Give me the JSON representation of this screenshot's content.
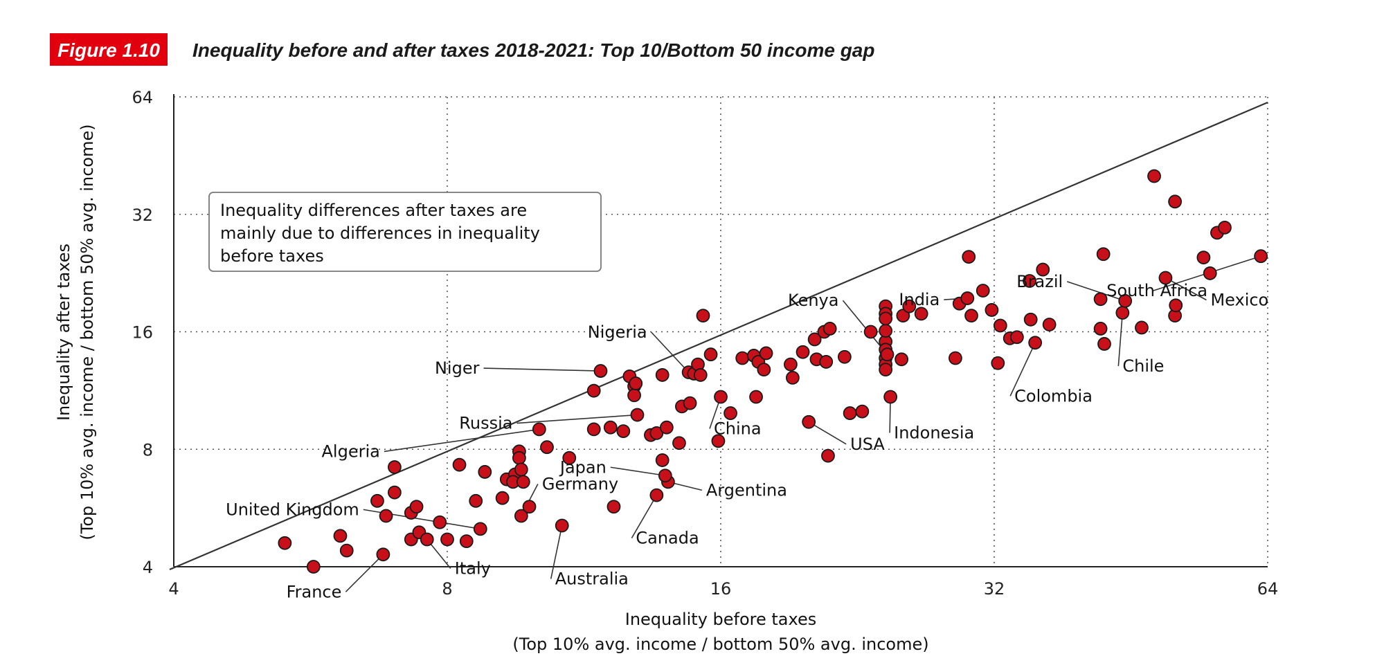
{
  "figure": {
    "badge": "Figure 1.10",
    "badge_color": "#e2000f",
    "title": "Inequality before and after taxes 2018-2021: Top 10/Bottom 50 income gap"
  },
  "chart_data": {
    "type": "scatter",
    "title": "Inequality before and after taxes 2018-2021: Top 10/Bottom 50 income gap",
    "xlabel": "Inequality before taxes",
    "xlabel_sub": "(Top 10% avg. income / bottom 50% avg. income)",
    "ylabel": "Inequality after taxes",
    "ylabel_sub": "(Top 10% avg. income / bottom 50% avg. income)",
    "xscale": "log2",
    "yscale": "log2",
    "xlim": [
      4,
      64
    ],
    "ylim": [
      4,
      64
    ],
    "xticks": [
      4,
      8,
      16,
      32,
      64
    ],
    "yticks": [
      4,
      8,
      16,
      32,
      64
    ],
    "xtick_labels": [
      "4",
      "8",
      "16",
      "32",
      "64"
    ],
    "ytick_labels": [
      "4",
      "8",
      "16",
      "32",
      "64"
    ],
    "grid": true,
    "reference_line": "y = x",
    "marker_color": "#c8101a",
    "annotation": [
      "Inequality differences after taxes are",
      "mainly due to differences in inequality",
      "before taxes"
    ],
    "points": [
      {
        "x": 5.3,
        "y": 4.6
      },
      {
        "x": 5.7,
        "y": 4.0
      },
      {
        "x": 6.1,
        "y": 4.8
      },
      {
        "x": 6.2,
        "y": 4.4
      },
      {
        "x": 6.7,
        "y": 5.9
      },
      {
        "x": 6.85,
        "y": 5.4
      },
      {
        "x": 6.8,
        "y": 4.3,
        "label": "France"
      },
      {
        "x": 7.0,
        "y": 7.2
      },
      {
        "x": 7.0,
        "y": 6.2
      },
      {
        "x": 7.3,
        "y": 5.5
      },
      {
        "x": 7.4,
        "y": 5.7
      },
      {
        "x": 7.3,
        "y": 4.7
      },
      {
        "x": 7.45,
        "y": 4.9
      },
      {
        "x": 7.6,
        "y": 4.7,
        "label": "Italy"
      },
      {
        "x": 7.85,
        "y": 5.2
      },
      {
        "x": 8.0,
        "y": 4.7
      },
      {
        "x": 8.25,
        "y": 7.3
      },
      {
        "x": 8.4,
        "y": 4.65
      },
      {
        "x": 8.6,
        "y": 5.9
      },
      {
        "x": 8.7,
        "y": 5.0,
        "label": "United Kingdom"
      },
      {
        "x": 8.8,
        "y": 7.0
      },
      {
        "x": 9.2,
        "y": 6.0
      },
      {
        "x": 9.3,
        "y": 6.7
      },
      {
        "x": 9.5,
        "y": 6.9
      },
      {
        "x": 9.45,
        "y": 6.6
      },
      {
        "x": 9.6,
        "y": 7.9
      },
      {
        "x": 9.6,
        "y": 7.6
      },
      {
        "x": 9.65,
        "y": 7.1
      },
      {
        "x": 9.7,
        "y": 6.6
      },
      {
        "x": 9.65,
        "y": 5.4,
        "label": "Germany"
      },
      {
        "x": 9.85,
        "y": 5.7
      },
      {
        "x": 10.1,
        "y": 9.0,
        "label": "Algeria"
      },
      {
        "x": 10.3,
        "y": 8.1
      },
      {
        "x": 10.7,
        "y": 5.1,
        "label": "Australia"
      },
      {
        "x": 10.9,
        "y": 7.6
      },
      {
        "x": 11.6,
        "y": 11.3
      },
      {
        "x": 11.6,
        "y": 9.0
      },
      {
        "x": 11.8,
        "y": 12.7,
        "label": "Niger"
      },
      {
        "x": 12.1,
        "y": 9.1
      },
      {
        "x": 12.2,
        "y": 5.7
      },
      {
        "x": 12.5,
        "y": 8.9
      },
      {
        "x": 12.7,
        "y": 12.3
      },
      {
        "x": 12.85,
        "y": 11.6
      },
      {
        "x": 12.85,
        "y": 11.0
      },
      {
        "x": 12.9,
        "y": 11.8
      },
      {
        "x": 12.95,
        "y": 9.8,
        "label": "Russia"
      },
      {
        "x": 13.4,
        "y": 8.7
      },
      {
        "x": 13.6,
        "y": 8.8
      },
      {
        "x": 13.6,
        "y": 6.1,
        "label": "Canada"
      },
      {
        "x": 13.8,
        "y": 12.4
      },
      {
        "x": 13.8,
        "y": 7.5
      },
      {
        "x": 13.95,
        "y": 9.1
      },
      {
        "x": 14.0,
        "y": 6.6,
        "label": "Argentina"
      },
      {
        "x": 13.9,
        "y": 6.85,
        "label": "Japan"
      },
      {
        "x": 14.4,
        "y": 8.3
      },
      {
        "x": 14.5,
        "y": 10.3
      },
      {
        "x": 14.8,
        "y": 10.5
      },
      {
        "x": 14.75,
        "y": 12.6,
        "label": "Nigeria"
      },
      {
        "x": 14.95,
        "y": 12.5
      },
      {
        "x": 15.1,
        "y": 13.2
      },
      {
        "x": 15.2,
        "y": 12.4
      },
      {
        "x": 15.3,
        "y": 17.6
      },
      {
        "x": 15.6,
        "y": 14.0
      },
      {
        "x": 15.9,
        "y": 8.4
      },
      {
        "x": 16.0,
        "y": 10.9,
        "label": "China"
      },
      {
        "x": 16.4,
        "y": 9.9
      },
      {
        "x": 16.9,
        "y": 13.7
      },
      {
        "x": 17.4,
        "y": 13.9
      },
      {
        "x": 17.6,
        "y": 13.4
      },
      {
        "x": 17.95,
        "y": 14.1
      },
      {
        "x": 17.5,
        "y": 10.9
      },
      {
        "x": 17.85,
        "y": 12.8
      },
      {
        "x": 19.1,
        "y": 13.2
      },
      {
        "x": 19.2,
        "y": 12.2
      },
      {
        "x": 19.7,
        "y": 14.2
      },
      {
        "x": 20.0,
        "y": 9.4,
        "label": "USA"
      },
      {
        "x": 20.4,
        "y": 13.6
      },
      {
        "x": 20.9,
        "y": 13.4
      },
      {
        "x": 20.3,
        "y": 15.3
      },
      {
        "x": 20.8,
        "y": 16.0
      },
      {
        "x": 21.1,
        "y": 16.3
      },
      {
        "x": 21.0,
        "y": 7.7
      },
      {
        "x": 21.9,
        "y": 13.8
      },
      {
        "x": 22.2,
        "y": 9.9
      },
      {
        "x": 22.9,
        "y": 10.0
      },
      {
        "x": 23.4,
        "y": 16.0
      },
      {
        "x": 24.3,
        "y": 15.1
      },
      {
        "x": 24.3,
        "y": 16.1
      },
      {
        "x": 24.3,
        "y": 14.4
      },
      {
        "x": 24.3,
        "y": 13.7
      },
      {
        "x": 24.3,
        "y": 13.2
      },
      {
        "x": 24.3,
        "y": 12.8
      },
      {
        "x": 24.3,
        "y": 18.6
      },
      {
        "x": 24.3,
        "y": 17.8
      },
      {
        "x": 24.3,
        "y": 17.3
      },
      {
        "x": 24.4,
        "y": 14.0,
        "label": "Kenya"
      },
      {
        "x": 24.6,
        "y": 10.9,
        "label": "Indonesia"
      },
      {
        "x": 25.3,
        "y": 13.6
      },
      {
        "x": 25.4,
        "y": 17.6
      },
      {
        "x": 25.8,
        "y": 18.6
      },
      {
        "x": 26.6,
        "y": 17.8
      },
      {
        "x": 29.0,
        "y": 13.7
      },
      {
        "x": 29.3,
        "y": 18.9
      },
      {
        "x": 29.9,
        "y": 19.5,
        "label": "India"
      },
      {
        "x": 30.2,
        "y": 17.6
      },
      {
        "x": 30.0,
        "y": 24.9
      },
      {
        "x": 31.1,
        "y": 20.4
      },
      {
        "x": 31.8,
        "y": 18.2
      },
      {
        "x": 32.3,
        "y": 13.3
      },
      {
        "x": 32.5,
        "y": 16.6
      },
      {
        "x": 33.3,
        "y": 15.4
      },
      {
        "x": 33.9,
        "y": 15.5
      },
      {
        "x": 35.0,
        "y": 21.6
      },
      {
        "x": 35.1,
        "y": 17.2
      },
      {
        "x": 35.5,
        "y": 15.0,
        "label": "Colombia"
      },
      {
        "x": 36.2,
        "y": 23.1
      },
      {
        "x": 36.8,
        "y": 16.7
      },
      {
        "x": 41.9,
        "y": 19.4
      },
      {
        "x": 41.9,
        "y": 16.3
      },
      {
        "x": 42.2,
        "y": 25.3
      },
      {
        "x": 42.3,
        "y": 14.9
      },
      {
        "x": 44.3,
        "y": 17.9,
        "label": "Chile"
      },
      {
        "x": 44.6,
        "y": 19.2,
        "label": "Brazil"
      },
      {
        "x": 46.5,
        "y": 16.4
      },
      {
        "x": 49.4,
        "y": 22.0,
        "label": "Mexico"
      },
      {
        "x": 50.6,
        "y": 17.6
      },
      {
        "x": 50.7,
        "y": 18.7
      },
      {
        "x": 55.3,
        "y": 22.6
      },
      {
        "x": 56.3,
        "y": 28.7
      },
      {
        "x": 57.4,
        "y": 29.6
      },
      {
        "x": 48.0,
        "y": 40.1
      },
      {
        "x": 50.6,
        "y": 34.5
      },
      {
        "x": 54.4,
        "y": 24.8
      },
      {
        "x": 62.9,
        "y": 25.0,
        "label": "South Africa"
      }
    ]
  }
}
